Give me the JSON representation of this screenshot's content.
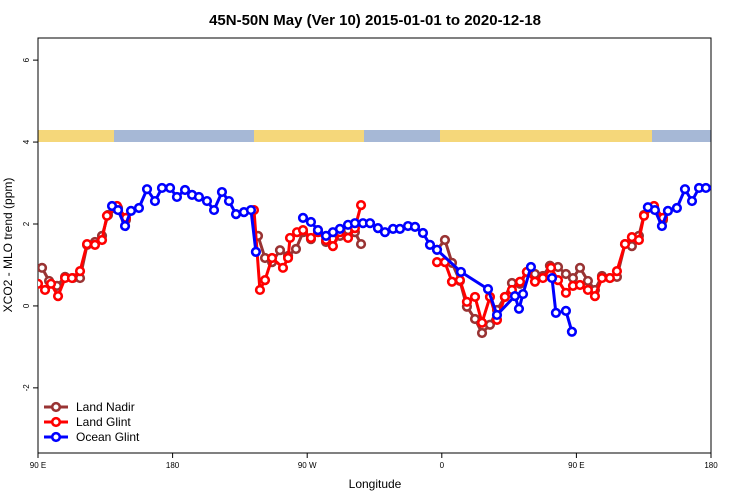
{
  "chart_data": {
    "type": "line",
    "title": "45N-50N May (Ver 10)   2015-01-01 to 2020-12-18",
    "xlabel": "Longitude",
    "ylabel": "XCO2 - MLO trend (ppm)",
    "xlim": [
      90,
      540
    ],
    "xticks": [
      {
        "value": 90,
        "label": "90 E"
      },
      {
        "value": 180,
        "label": "180"
      },
      {
        "value": 270,
        "label": "90 W"
      },
      {
        "value": 360,
        "label": "0"
      },
      {
        "value": 450,
        "label": "90 E"
      },
      {
        "value": 540,
        "label": "180"
      }
    ],
    "ylim": [
      -3.59,
      6.54
    ],
    "yticks": [
      -2,
      0,
      2,
      4,
      6
    ],
    "grid": false,
    "legend": "bottom-left",
    "series": [
      {
        "name": "Land Nadir",
        "color": "#993333",
        "x": [
          92.7,
          97.4,
          102.7,
          108.1,
          113.4,
          118.1,
          122.8,
          128.1,
          132.8,
          136.8,
          143.5,
          148.8,
          null,
          237.1,
          241.8,
          246.5,
          251.8,
          257.2,
          262.5,
          267.2,
          272.5,
          277.2,
          282.6,
          287.2,
          291.9,
          297.3,
          301.9,
          306.0,
          null,
          356.8,
          362.1,
          366.8,
          372.1,
          376.8,
          382.2,
          386.9,
          392.2,
          396.9,
          402.2,
          406.9,
          412.3,
          416.9,
          422.3,
          427.6,
          432.3,
          437.7,
          443.0,
          447.7,
          452.4,
          457.7,
          462.4,
          467.1,
          472.4,
          477.1,
          482.5,
          487.1,
          491.8,
          495.2,
          501.9,
          507.9
        ],
        "values": [
          0.93,
          0.61,
          0.49,
          0.71,
          0.68,
          0.68,
          1.49,
          1.56,
          1.71,
          2.22,
          2.39,
          2.1,
          null,
          1.71,
          1.17,
          1.07,
          1.36,
          1.22,
          1.39,
          1.8,
          1.63,
          1.85,
          1.56,
          1.63,
          1.71,
          1.85,
          1.8,
          1.51,
          null,
          1.37,
          1.61,
          1.05,
          0.61,
          -0.02,
          -0.32,
          -0.66,
          -0.46,
          -0.1,
          0.22,
          0.56,
          0.54,
          0.83,
          0.78,
          0.73,
          0.98,
          0.95,
          0.78,
          0.68,
          0.93,
          0.61,
          0.39,
          0.73,
          0.68,
          0.71,
          1.51,
          1.46,
          1.71,
          2.22,
          2.39,
          2.1
        ]
      },
      {
        "name": "Land Glint",
        "color": "#ff0000",
        "x": [
          90.0,
          94.7,
          98.7,
          103.4,
          108.1,
          112.7,
          118.1,
          122.8,
          128.1,
          132.8,
          136.1,
          142.8,
          148.8,
          null,
          234.4,
          238.4,
          241.8,
          246.5,
          253.8,
          257.2,
          258.5,
          263.2,
          267.2,
          272.5,
          277.2,
          282.6,
          287.2,
          291.9,
          297.3,
          301.9,
          306.0,
          null,
          356.8,
          362.1,
          366.8,
          372.1,
          376.8,
          382.2,
          386.9,
          392.2,
          396.9,
          402.2,
          406.9,
          412.3,
          416.9,
          422.3,
          427.6,
          433.0,
          437.7,
          443.0,
          447.7,
          452.4,
          457.7,
          462.4,
          467.1,
          472.4,
          477.1,
          482.5,
          487.1,
          491.8,
          495.2,
          501.9,
          507.9
        ],
        "values": [
          0.54,
          0.39,
          0.54,
          0.24,
          0.68,
          0.68,
          0.85,
          1.51,
          1.49,
          1.61,
          2.2,
          2.44,
          2.15,
          null,
          2.34,
          0.39,
          0.63,
          1.17,
          0.93,
          1.17,
          1.66,
          1.8,
          1.85,
          1.66,
          1.8,
          1.61,
          1.46,
          1.8,
          1.66,
          1.9,
          2.46,
          null,
          1.07,
          1.07,
          0.59,
          0.63,
          0.1,
          0.22,
          -0.41,
          0.22,
          -0.34,
          0.22,
          0.39,
          0.59,
          0.83,
          0.59,
          0.68,
          0.93,
          0.63,
          0.32,
          0.49,
          0.51,
          0.39,
          0.24,
          0.68,
          0.68,
          0.85,
          1.51,
          1.68,
          1.61,
          2.2,
          2.44,
          2.15
        ]
      },
      {
        "name": "Ocean Glint",
        "color": "#0000ff",
        "x": [
          139.5,
          143.5,
          148.2,
          152.2,
          157.5,
          162.9,
          168.2,
          172.9,
          178.3,
          182.9,
          188.3,
          193.0,
          197.6,
          203.0,
          207.7,
          213.0,
          217.7,
          222.4,
          227.7,
          232.4,
          235.7,
          null,
          267.2,
          272.5,
          277.2,
          282.6,
          287.2,
          291.9,
          297.3,
          301.9,
          307.3,
          312.0,
          317.3,
          322.0,
          327.4,
          332.0,
          337.4,
          342.1,
          347.4,
          352.1,
          356.8,
          372.8,
          390.9,
          396.9,
          408.9,
          411.6,
          414.3,
          419.6,
          null,
          433.7,
          436.3,
          443.0,
          447.0,
          null,
          497.8,
          502.5,
          507.2,
          511.2,
          517.2,
          522.6,
          527.3,
          532.0,
          536.6
        ],
        "values": [
          2.44,
          2.34,
          1.95,
          2.32,
          2.39,
          2.85,
          2.56,
          2.88,
          2.88,
          2.66,
          2.83,
          2.71,
          2.66,
          2.56,
          2.34,
          2.78,
          2.56,
          2.24,
          2.29,
          2.34,
          1.32,
          null,
          2.15,
          2.05,
          1.85,
          1.71,
          1.8,
          1.88,
          1.98,
          2.02,
          2.02,
          2.02,
          1.9,
          1.8,
          1.88,
          1.88,
          1.95,
          1.93,
          1.78,
          1.49,
          1.37,
          0.83,
          0.41,
          -0.22,
          0.24,
          -0.07,
          0.29,
          0.95,
          null,
          0.68,
          -0.17,
          -0.12,
          -0.63,
          null,
          2.41,
          2.34,
          1.95,
          2.32,
          2.39,
          2.85,
          2.56,
          2.88,
          2.88
        ]
      }
    ]
  }
}
